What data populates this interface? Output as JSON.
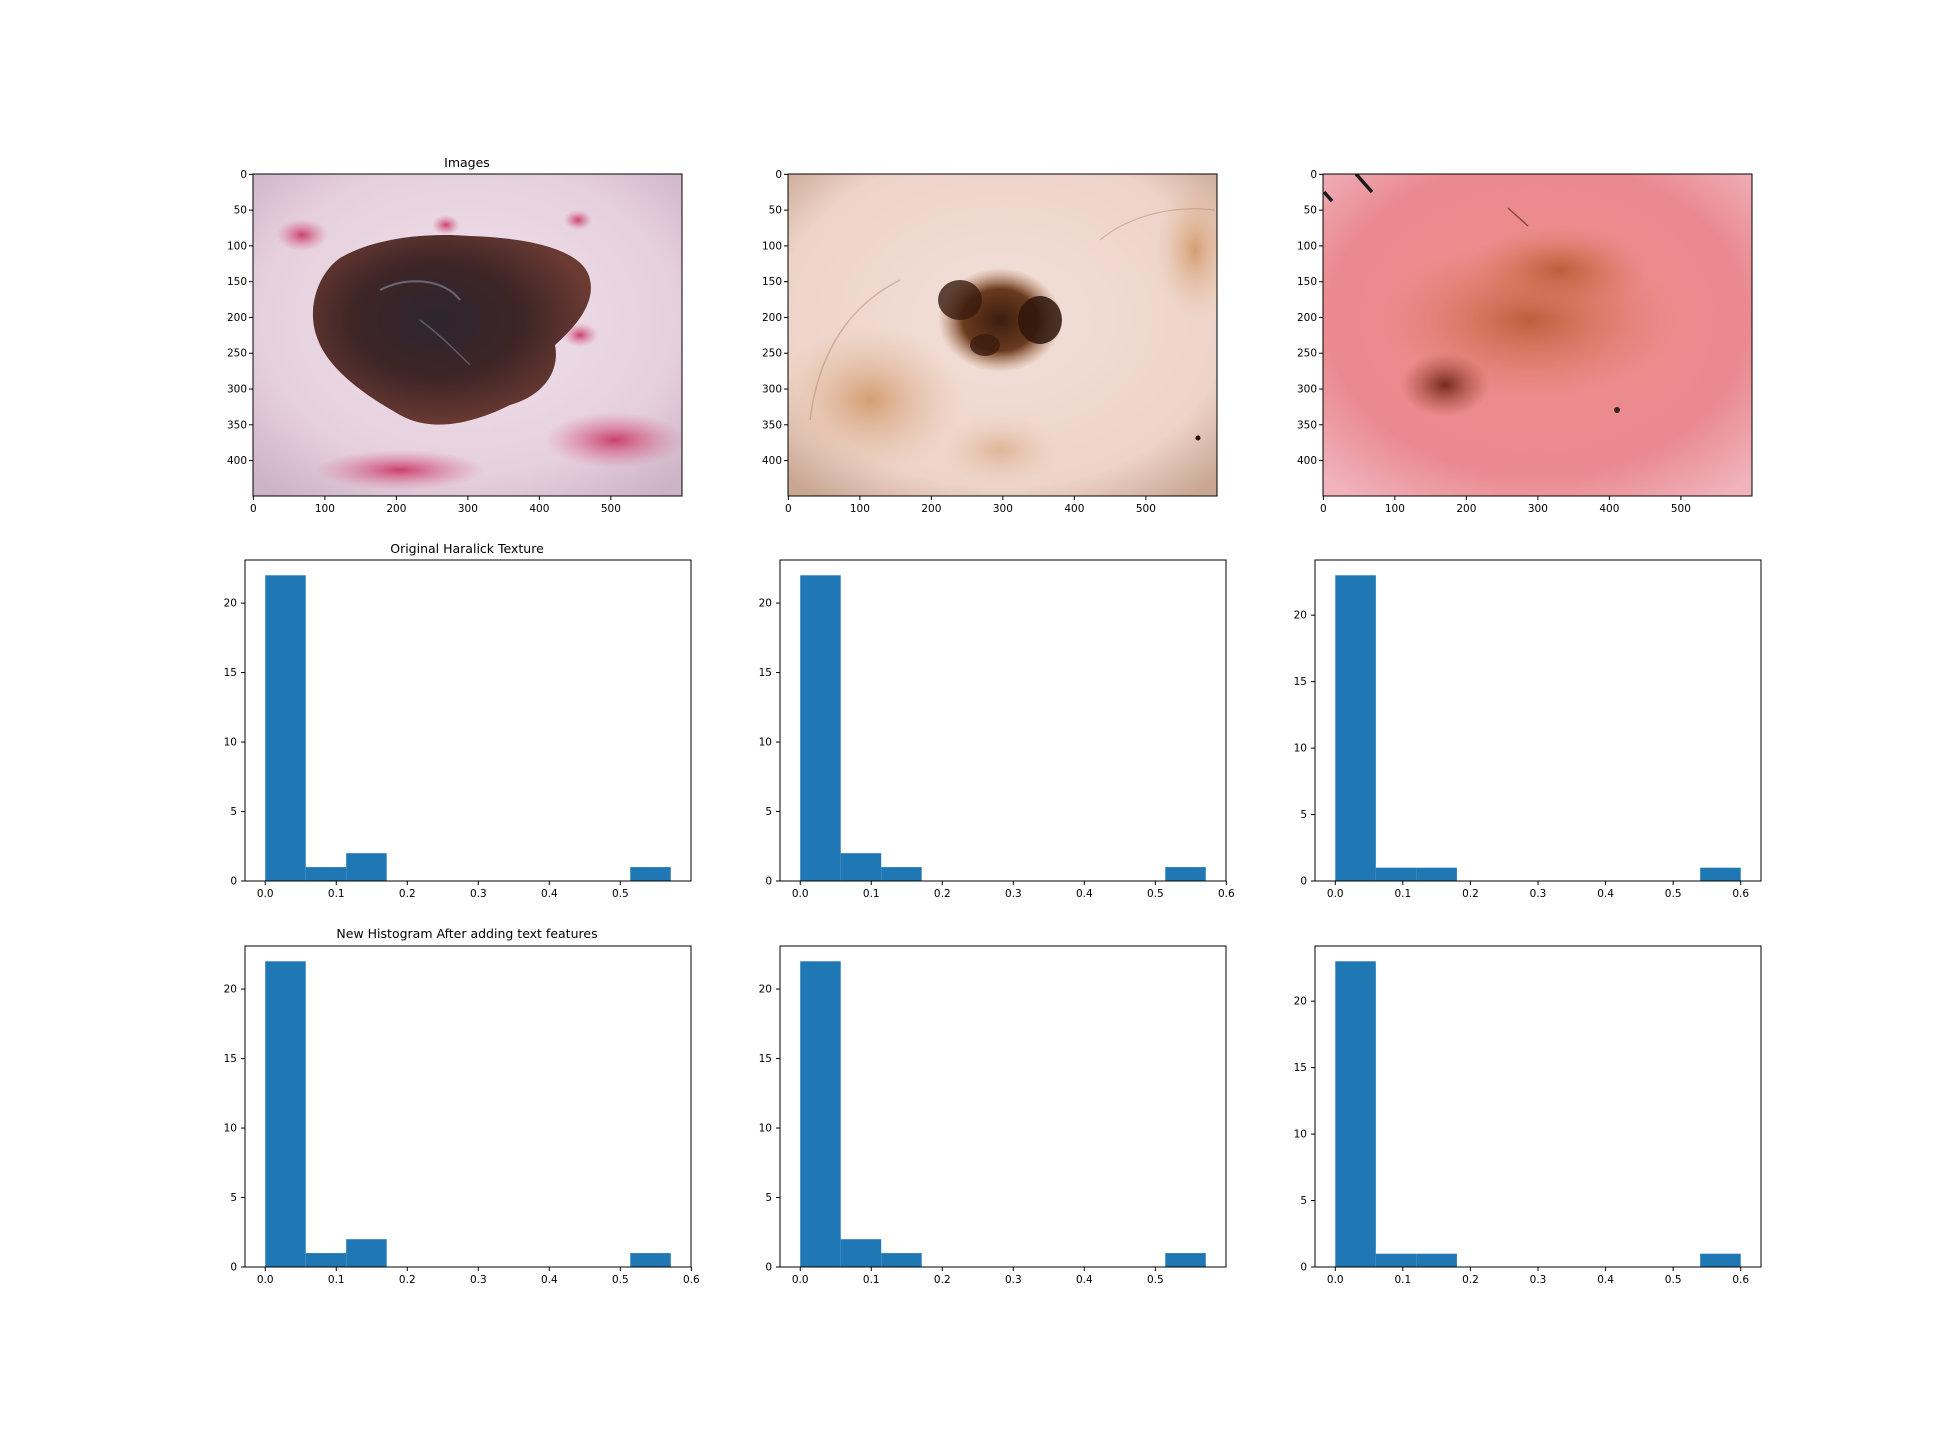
{
  "figure": {
    "row_titles": [
      "Images",
      "Original Haralick Texture",
      "New Histogram After adding text features"
    ]
  },
  "images": [
    {
      "kind": "dermoscopy-photo",
      "description_colors": {
        "background": "#e9d3df",
        "lesion": "#3b2324",
        "spots": "#c9426c"
      },
      "width": 600,
      "height": 450,
      "x_ticks": [
        0,
        100,
        200,
        300,
        400,
        500
      ],
      "y_ticks": [
        0,
        50,
        100,
        150,
        200,
        250,
        300,
        350,
        400
      ]
    },
    {
      "kind": "dermoscopy-photo",
      "description_colors": {
        "background": "#f0d6cc",
        "lesion": "#5a3018",
        "halo": "#d8a27a"
      },
      "width": 600,
      "height": 450,
      "x_ticks": [
        0,
        100,
        200,
        300,
        400,
        500
      ],
      "y_ticks": [
        0,
        50,
        100,
        150,
        200,
        250,
        300,
        350,
        400
      ]
    },
    {
      "kind": "dermoscopy-photo",
      "description_colors": {
        "background": "#e88a8c",
        "lesion": "#b0562e",
        "dark": "#7a2a1c"
      },
      "width": 600,
      "height": 450,
      "x_ticks": [
        0,
        100,
        200,
        300,
        400,
        500
      ],
      "y_ticks": [
        0,
        50,
        100,
        150,
        200,
        250,
        300,
        350,
        400
      ]
    }
  ],
  "chart_data": [
    {
      "type": "bar",
      "panel": "original-1",
      "bar_color": "#1f77b4",
      "bins": [
        {
          "x0": 0.0,
          "x1": 0.057,
          "count": 22
        },
        {
          "x0": 0.057,
          "x1": 0.114,
          "count": 1
        },
        {
          "x0": 0.114,
          "x1": 0.171,
          "count": 2
        },
        {
          "x0": 0.514,
          "x1": 0.571,
          "count": 1
        }
      ],
      "xlim": [
        -0.0285,
        0.5995
      ],
      "ylim": [
        0,
        23.1
      ],
      "x_ticks": [
        "0.0",
        "0.1",
        "0.2",
        "0.3",
        "0.4",
        "0.5"
      ],
      "x_tick_values": [
        0,
        0.1,
        0.2,
        0.3,
        0.4,
        0.5
      ],
      "y_ticks": [
        "0",
        "5",
        "10",
        "15",
        "20"
      ],
      "y_tick_values": [
        0,
        5,
        10,
        15,
        20
      ]
    },
    {
      "type": "bar",
      "panel": "original-2",
      "bar_color": "#1f77b4",
      "bins": [
        {
          "x0": 0.0,
          "x1": 0.057,
          "count": 22
        },
        {
          "x0": 0.057,
          "x1": 0.114,
          "count": 2
        },
        {
          "x0": 0.114,
          "x1": 0.171,
          "count": 1
        },
        {
          "x0": 0.514,
          "x1": 0.571,
          "count": 1
        }
      ],
      "xlim": [
        -0.0285,
        0.5995
      ],
      "ylim": [
        0,
        23.1
      ],
      "x_ticks": [
        "0.0",
        "0.1",
        "0.2",
        "0.3",
        "0.4",
        "0.5",
        "0.6"
      ],
      "x_tick_values": [
        0,
        0.1,
        0.2,
        0.3,
        0.4,
        0.5,
        0.6
      ],
      "y_ticks": [
        "0",
        "5",
        "10",
        "15",
        "20"
      ],
      "y_tick_values": [
        0,
        5,
        10,
        15,
        20
      ]
    },
    {
      "type": "bar",
      "panel": "original-3",
      "bar_color": "#1f77b4",
      "bins": [
        {
          "x0": 0.0,
          "x1": 0.06,
          "count": 23
        },
        {
          "x0": 0.06,
          "x1": 0.12,
          "count": 1
        },
        {
          "x0": 0.12,
          "x1": 0.18,
          "count": 1
        },
        {
          "x0": 0.54,
          "x1": 0.6,
          "count": 1
        }
      ],
      "xlim": [
        -0.03,
        0.63
      ],
      "ylim": [
        0,
        24.15
      ],
      "x_ticks": [
        "0.0",
        "0.1",
        "0.2",
        "0.3",
        "0.4",
        "0.5",
        "0.6"
      ],
      "x_tick_values": [
        0,
        0.1,
        0.2,
        0.3,
        0.4,
        0.5,
        0.6
      ],
      "y_ticks": [
        "0",
        "5",
        "10",
        "15",
        "20"
      ],
      "y_tick_values": [
        0,
        5,
        10,
        15,
        20
      ]
    },
    {
      "type": "bar",
      "panel": "new-1",
      "bar_color": "#1f77b4",
      "bins": [
        {
          "x0": 0.0,
          "x1": 0.057,
          "count": 22
        },
        {
          "x0": 0.057,
          "x1": 0.114,
          "count": 1
        },
        {
          "x0": 0.114,
          "x1": 0.171,
          "count": 2
        },
        {
          "x0": 0.514,
          "x1": 0.571,
          "count": 1
        }
      ],
      "xlim": [
        -0.0285,
        0.5995
      ],
      "ylim": [
        0,
        23.1
      ],
      "x_ticks": [
        "0.0",
        "0.1",
        "0.2",
        "0.3",
        "0.4",
        "0.5",
        "0.6"
      ],
      "x_tick_values": [
        0,
        0.1,
        0.2,
        0.3,
        0.4,
        0.5,
        0.6
      ],
      "y_ticks": [
        "0",
        "5",
        "10",
        "15",
        "20"
      ],
      "y_tick_values": [
        0,
        5,
        10,
        15,
        20
      ]
    },
    {
      "type": "bar",
      "panel": "new-2",
      "bar_color": "#1f77b4",
      "bins": [
        {
          "x0": 0.0,
          "x1": 0.057,
          "count": 22
        },
        {
          "x0": 0.057,
          "x1": 0.114,
          "count": 2
        },
        {
          "x0": 0.114,
          "x1": 0.171,
          "count": 1
        },
        {
          "x0": 0.514,
          "x1": 0.571,
          "count": 1
        }
      ],
      "xlim": [
        -0.0285,
        0.5995
      ],
      "ylim": [
        0,
        23.1
      ],
      "x_ticks": [
        "0.0",
        "0.1",
        "0.2",
        "0.3",
        "0.4",
        "0.5"
      ],
      "x_tick_values": [
        0,
        0.1,
        0.2,
        0.3,
        0.4,
        0.5
      ],
      "y_ticks": [
        "0",
        "5",
        "10",
        "15",
        "20"
      ],
      "y_tick_values": [
        0,
        5,
        10,
        15,
        20
      ]
    },
    {
      "type": "bar",
      "panel": "new-3",
      "bar_color": "#1f77b4",
      "bins": [
        {
          "x0": 0.0,
          "x1": 0.06,
          "count": 23
        },
        {
          "x0": 0.06,
          "x1": 0.12,
          "count": 1
        },
        {
          "x0": 0.12,
          "x1": 0.18,
          "count": 1
        },
        {
          "x0": 0.54,
          "x1": 0.6,
          "count": 1
        }
      ],
      "xlim": [
        -0.03,
        0.63
      ],
      "ylim": [
        0,
        24.15
      ],
      "x_ticks": [
        "0.0",
        "0.1",
        "0.2",
        "0.3",
        "0.4",
        "0.5",
        "0.6"
      ],
      "x_tick_values": [
        0,
        0.1,
        0.2,
        0.3,
        0.4,
        0.5,
        0.6
      ],
      "y_ticks": [
        "0",
        "5",
        "10",
        "15",
        "20"
      ],
      "y_tick_values": [
        0,
        5,
        10,
        15,
        20
      ]
    }
  ]
}
